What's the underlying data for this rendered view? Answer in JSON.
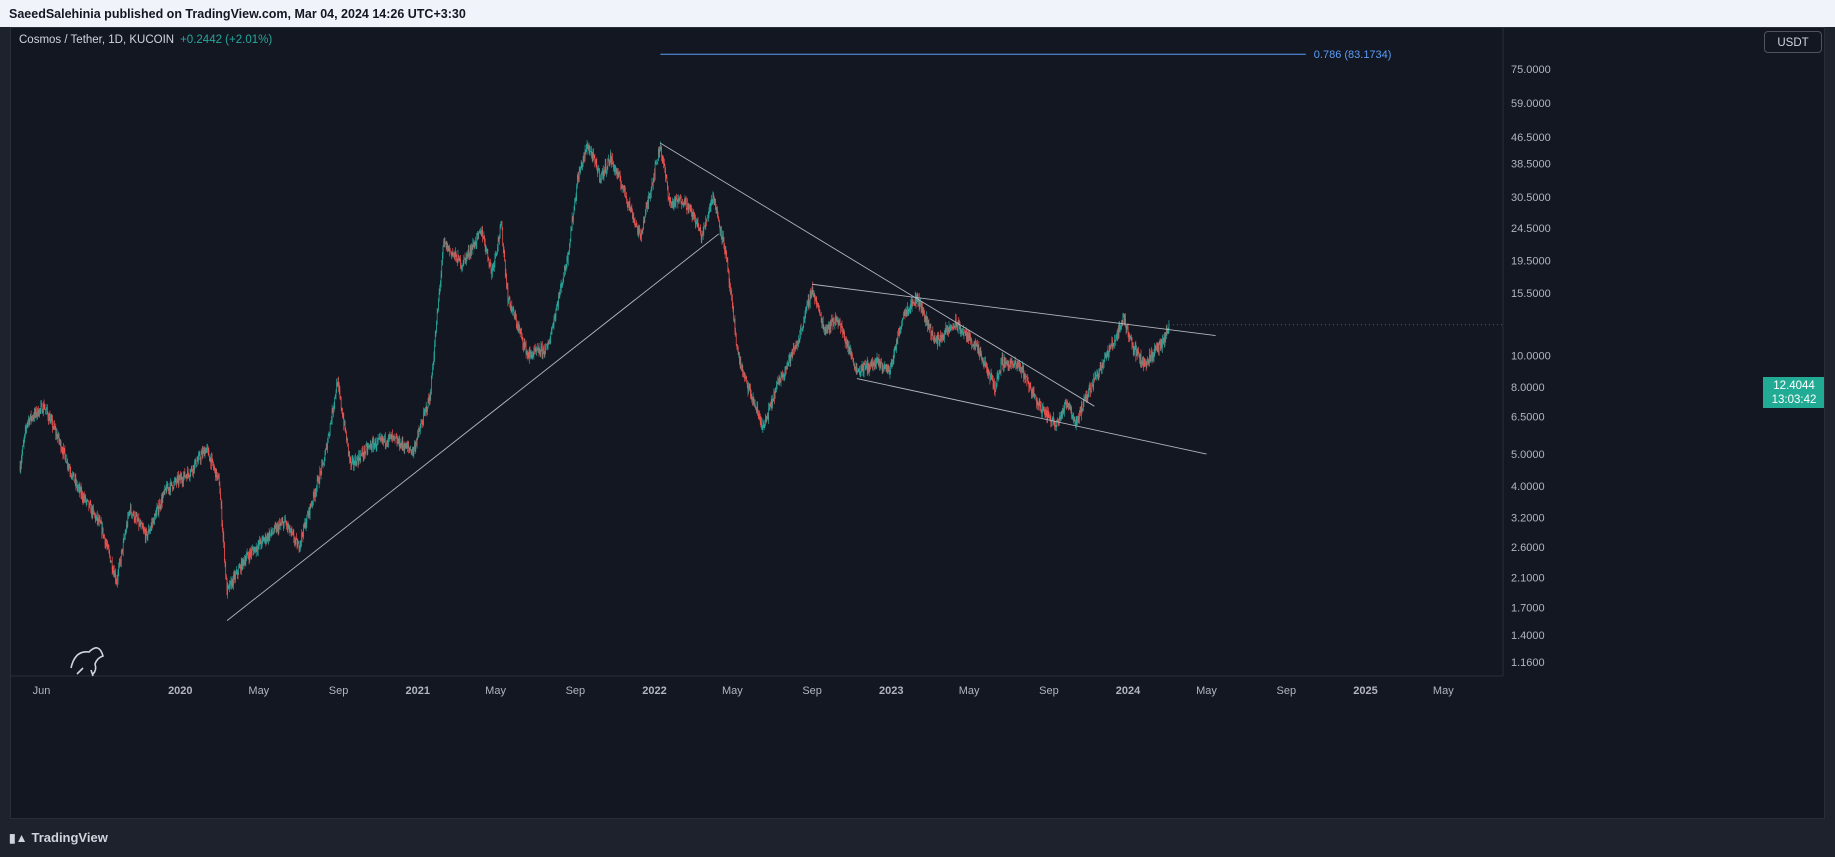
{
  "header": {
    "publisher_text": "SaeedSalehinia published on TradingView.com, Mar 04, 2024 14:26 UTC+3:30"
  },
  "legend": {
    "symbol": "Cosmos / Tether, 1D, KUCOIN",
    "change": "+0.2442 (+2.01%)"
  },
  "currency": "USDT",
  "last_price": {
    "value": "12.4044",
    "countdown": "13:03:42"
  },
  "fib_label": "0.786 (83.1734)",
  "footer": {
    "brand": "TradingView"
  },
  "colors": {
    "up": "#26a69a",
    "down": "#ef5350",
    "fib": "#5b9cf6",
    "trendline": "#b2b5be",
    "background": "#131722"
  },
  "chart_data": {
    "type": "candlestick",
    "symbol": "Cosmos / Tether",
    "interval": "1D",
    "exchange": "KUCOIN",
    "yscale": "log",
    "ylim": [
      1.05,
      100
    ],
    "y_ticks": [
      "75.0000",
      "59.0000",
      "46.5000",
      "38.5000",
      "30.5000",
      "24.5000",
      "19.5000",
      "15.5000",
      "12.4044",
      "10.0000",
      "8.0000",
      "6.5000",
      "5.0000",
      "4.0000",
      "3.2000",
      "2.6000",
      "2.1000",
      "1.7000",
      "1.4000",
      "1.1600"
    ],
    "x_ticks": [
      "Jun",
      "2020",
      "May",
      "Sep",
      "2021",
      "May",
      "Sep",
      "2022",
      "May",
      "Sep",
      "2023",
      "May",
      "Sep",
      "2024",
      "May",
      "Sep",
      "2025",
      "May"
    ],
    "x_tick_dates": [
      "2019-06-01",
      "2020-01-01",
      "2020-05-01",
      "2020-09-01",
      "2021-01-01",
      "2021-05-01",
      "2021-09-01",
      "2022-01-01",
      "2022-05-01",
      "2022-09-01",
      "2023-01-01",
      "2023-05-01",
      "2023-09-01",
      "2024-01-01",
      "2024-05-01",
      "2024-09-01",
      "2025-01-01",
      "2025-05-01"
    ],
    "xlim": [
      "2019-04-15",
      "2025-08-01"
    ],
    "price_anchors": [
      [
        "2019-04-29",
        4.6
      ],
      [
        "2019-05-10",
        6.3
      ],
      [
        "2019-06-05",
        7.0
      ],
      [
        "2019-06-25",
        5.7
      ],
      [
        "2019-07-25",
        4.0
      ],
      [
        "2019-09-01",
        3.0
      ],
      [
        "2019-09-25",
        2.05
      ],
      [
        "2019-10-15",
        3.4
      ],
      [
        "2019-11-10",
        2.8
      ],
      [
        "2019-12-10",
        3.9
      ],
      [
        "2020-01-15",
        4.4
      ],
      [
        "2020-02-10",
        5.2
      ],
      [
        "2020-03-01",
        4.1
      ],
      [
        "2020-03-13",
        1.9
      ],
      [
        "2020-04-10",
        2.4
      ],
      [
        "2020-05-10",
        2.75
      ],
      [
        "2020-06-10",
        3.1
      ],
      [
        "2020-07-01",
        2.6
      ],
      [
        "2020-08-10",
        4.8
      ],
      [
        "2020-08-30",
        8.3
      ],
      [
        "2020-09-20",
        4.6
      ],
      [
        "2020-10-20",
        5.3
      ],
      [
        "2020-11-20",
        5.6
      ],
      [
        "2020-12-25",
        5.1
      ],
      [
        "2021-01-20",
        7.5
      ],
      [
        "2021-02-10",
        22.0
      ],
      [
        "2021-03-10",
        19.0
      ],
      [
        "2021-04-10",
        24.0
      ],
      [
        "2021-04-25",
        18.0
      ],
      [
        "2021-05-10",
        25.0
      ],
      [
        "2021-05-20",
        15.0
      ],
      [
        "2021-06-20",
        10.0
      ],
      [
        "2021-07-20",
        10.5
      ],
      [
        "2021-08-20",
        20.0
      ],
      [
        "2021-09-05",
        35.0
      ],
      [
        "2021-09-20",
        44.0
      ],
      [
        "2021-10-10",
        35.0
      ],
      [
        "2021-10-25",
        40.0
      ],
      [
        "2021-11-15",
        32.0
      ],
      [
        "2021-12-10",
        23.0
      ],
      [
        "2022-01-10",
        44.0
      ],
      [
        "2022-01-25",
        29.0
      ],
      [
        "2022-02-15",
        30.0
      ],
      [
        "2022-03-05",
        26.0
      ],
      [
        "2022-03-15",
        23.0
      ],
      [
        "2022-04-01",
        31.0
      ],
      [
        "2022-04-20",
        21.0
      ],
      [
        "2022-05-10",
        10.0
      ],
      [
        "2022-05-20",
        8.5
      ],
      [
        "2022-06-18",
        6.0
      ],
      [
        "2022-07-10",
        8.2
      ],
      [
        "2022-08-10",
        11.0
      ],
      [
        "2022-09-01",
        16.0
      ],
      [
        "2022-09-20",
        12.0
      ],
      [
        "2022-10-10",
        13.0
      ],
      [
        "2022-11-09",
        9.0
      ],
      [
        "2022-12-10",
        9.5
      ],
      [
        "2022-12-30",
        9.0
      ],
      [
        "2023-01-20",
        13.5
      ],
      [
        "2023-02-10",
        15.0
      ],
      [
        "2023-03-10",
        11.0
      ],
      [
        "2023-04-10",
        12.5
      ],
      [
        "2023-05-10",
        10.8
      ],
      [
        "2023-06-10",
        8.0
      ],
      [
        "2023-06-20",
        9.6
      ],
      [
        "2023-07-20",
        9.2
      ],
      [
        "2023-08-17",
        7.0
      ],
      [
        "2023-09-11",
        6.2
      ],
      [
        "2023-10-01",
        7.2
      ],
      [
        "2023-10-12",
        6.2
      ],
      [
        "2023-11-10",
        8.5
      ],
      [
        "2023-12-10",
        11.0
      ],
      [
        "2023-12-25",
        13.0
      ],
      [
        "2024-01-10",
        10.5
      ],
      [
        "2024-01-25",
        9.4
      ],
      [
        "2024-02-10",
        10.2
      ],
      [
        "2024-02-25",
        11.0
      ],
      [
        "2024-03-04",
        12.4044
      ]
    ],
    "annotations": {
      "fib_level": {
        "ratio": 0.786,
        "price": 83.1734,
        "start": "2022-01-10",
        "end": "2024-10-01"
      },
      "trendlines": [
        {
          "from": [
            "2020-03-13",
            1.55
          ],
          "to": [
            "2022-04-10",
            23.5
          ]
        },
        {
          "from": [
            "2022-01-10",
            44.5
          ],
          "to": [
            "2023-11-10",
            7.0
          ]
        },
        {
          "from": [
            "2022-09-01",
            16.5
          ],
          "to": [
            "2024-05-15",
            11.5
          ]
        },
        {
          "from": [
            "2022-11-09",
            8.5
          ],
          "to": [
            "2024-05-01",
            5.0
          ]
        }
      ]
    }
  }
}
